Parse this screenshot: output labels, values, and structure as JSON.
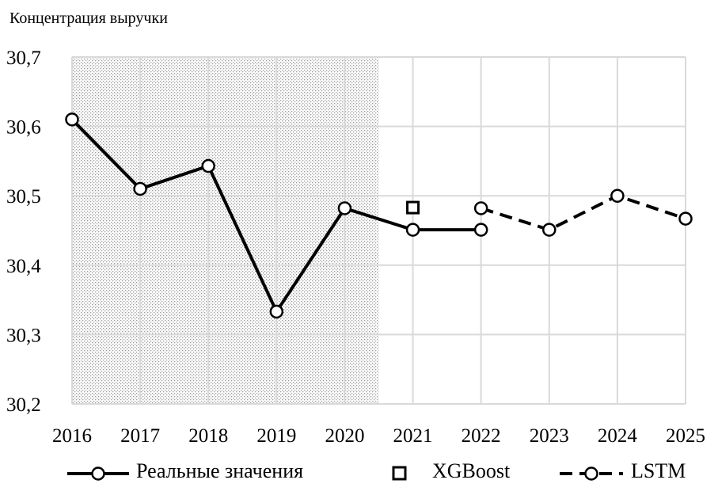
{
  "chart_data": {
    "type": "line",
    "title": "",
    "ylabel": "Концентрация выручки",
    "xlabel": "",
    "categories": [
      "2016",
      "2017",
      "2018",
      "2019",
      "2020",
      "2021",
      "2022",
      "2023",
      "2024",
      "2025"
    ],
    "y_ticks": [
      "30,2",
      "30,3",
      "30,4",
      "30,5",
      "30,6",
      "30,7"
    ],
    "ylim": [
      30.2,
      30.7
    ],
    "grid": "vertical and horizontal",
    "shaded_region": {
      "from_year": "2016",
      "to_year": "2020",
      "pattern": "dotted"
    },
    "series": [
      {
        "name": "Реальные значения",
        "style": "solid",
        "marker": "circle",
        "points": [
          {
            "x": "2016",
            "y": 30.61
          },
          {
            "x": "2017",
            "y": 30.51
          },
          {
            "x": "2018",
            "y": 30.543
          },
          {
            "x": "2019",
            "y": 30.333
          },
          {
            "x": "2020",
            "y": 30.482
          },
          {
            "x": "2021",
            "y": 30.451
          },
          {
            "x": "2022",
            "y": 30.451
          }
        ]
      },
      {
        "name": "XGBoost",
        "style": "none",
        "marker": "square",
        "points": [
          {
            "x": "2021",
            "y": 30.483
          }
        ]
      },
      {
        "name": "LSTM",
        "style": "dashed",
        "marker": "circle",
        "points": [
          {
            "x": "2022",
            "y": 30.482
          },
          {
            "x": "2023",
            "y": 30.451
          },
          {
            "x": "2024",
            "y": 30.5
          },
          {
            "x": "2025",
            "y": 30.467
          }
        ]
      }
    ],
    "legend_position": "bottom",
    "colors": {
      "line": "#000000",
      "grid": "#d9d9d9",
      "marker_fill": "#ffffff"
    }
  }
}
